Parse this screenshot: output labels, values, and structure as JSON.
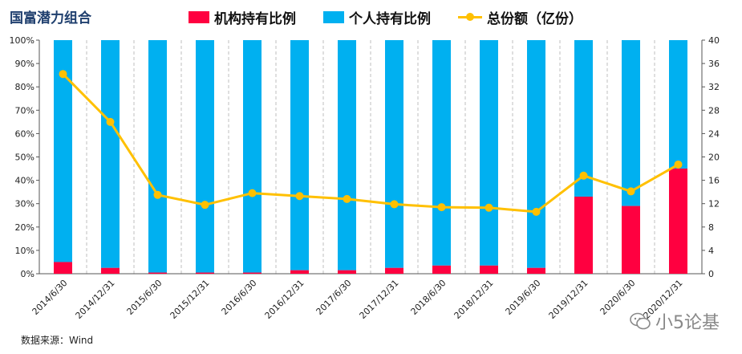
{
  "title": "国富潜力组合",
  "source": "数据来源：Wind",
  "watermark": "小5论基",
  "colors": {
    "institutional": "#ff0040",
    "individual": "#00b0f0",
    "total": "#ffc000"
  },
  "chart_data": {
    "type": "bar",
    "stacked": true,
    "title": "国富潜力组合",
    "categories": [
      "2014/6/30",
      "2014/12/31",
      "2015/6/30",
      "2015/12/31",
      "2016/6/30",
      "2016/12/31",
      "2017/6/30",
      "2017/12/31",
      "2018/6/30",
      "2018/12/31",
      "2019/6/30",
      "2019/12/31",
      "2020/6/30",
      "2020/12/31"
    ],
    "series": [
      {
        "name": "机构持有比例",
        "type": "bar",
        "axis": "left",
        "values": [
          5,
          2.5,
          0.5,
          0.5,
          0.5,
          1.5,
          1.5,
          2.5,
          3.5,
          3.5,
          2.5,
          33,
          29,
          45
        ]
      },
      {
        "name": "个人持有比例",
        "type": "bar",
        "axis": "left",
        "values": [
          95,
          97.5,
          99.5,
          99.5,
          99.5,
          98.5,
          98.5,
          97.5,
          96.5,
          96.5,
          97.5,
          67,
          71,
          55
        ]
      },
      {
        "name": "总份额（亿份）",
        "type": "line",
        "axis": "right",
        "values": [
          34.2,
          26.0,
          13.5,
          11.8,
          13.8,
          13.3,
          12.8,
          11.9,
          11.4,
          11.3,
          10.6,
          16.8,
          14.1,
          18.7
        ]
      }
    ],
    "y_left": {
      "ylim": [
        0,
        100
      ],
      "ticks": [
        "0%",
        "10%",
        "20%",
        "30%",
        "40%",
        "50%",
        "60%",
        "70%",
        "80%",
        "90%",
        "100%"
      ]
    },
    "y_right": {
      "ylim": [
        0,
        40
      ],
      "ticks": [
        "0",
        "4",
        "8",
        "12",
        "16",
        "20",
        "24",
        "28",
        "32",
        "36",
        "40"
      ]
    },
    "grid": "vertical-dashed",
    "legend": "top"
  }
}
